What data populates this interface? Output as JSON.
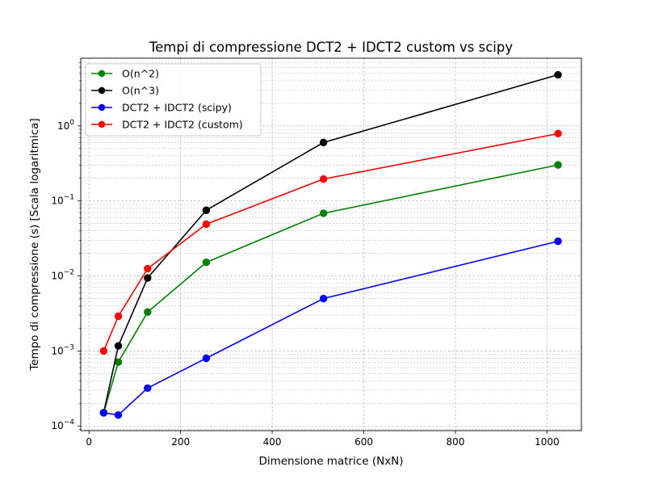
{
  "chart_data": {
    "type": "line",
    "title": "Tempi di compressione DCT2 + IDCT2 custom vs scipy",
    "xlabel": "Dimensione matrice (NxN)",
    "ylabel": "Tempo di compressione (s) [Scala logaritmica]",
    "x_scale": "linear",
    "y_scale": "log",
    "xlim": [
      -18,
      1075
    ],
    "ylim": [
      8.67e-05,
      8.0
    ],
    "x_ticks": [
      0,
      200,
      400,
      600,
      800,
      1000
    ],
    "y_ticks": [
      {
        "value": 0.0001,
        "base": "10",
        "exp": "−4"
      },
      {
        "value": 0.001,
        "base": "10",
        "exp": "−3"
      },
      {
        "value": 0.01,
        "base": "10",
        "exp": "−2"
      },
      {
        "value": 0.1,
        "base": "10",
        "exp": "−1"
      },
      {
        "value": 1,
        "base": "10",
        "exp": "0"
      }
    ],
    "grid": true,
    "grid_minor": true,
    "legend_position": "upper-left",
    "x": [
      32,
      64,
      128,
      256,
      512,
      1024
    ],
    "series": [
      {
        "name": "O(n^2)",
        "color": "#008000",
        "marker": "circle",
        "values": [
          0.00015,
          0.00071,
          0.0033,
          0.0152,
          0.0685,
          0.302
        ]
      },
      {
        "name": "O(n^3)",
        "color": "#000000",
        "marker": "circle",
        "values": [
          0.00015,
          0.00117,
          0.0094,
          0.0751,
          0.601,
          4.81
        ]
      },
      {
        "name": "DCT2 + IDCT2 (scipy)",
        "color": "#0000ff",
        "marker": "circle",
        "values": [
          0.00015,
          0.00014,
          0.00032,
          0.0008,
          0.005,
          0.029
        ]
      },
      {
        "name": "DCT2 + IDCT2 (custom)",
        "color": "#ff0000",
        "marker": "circle",
        "values": [
          0.001,
          0.0029,
          0.0125,
          0.049,
          0.196,
          0.79
        ]
      }
    ]
  }
}
